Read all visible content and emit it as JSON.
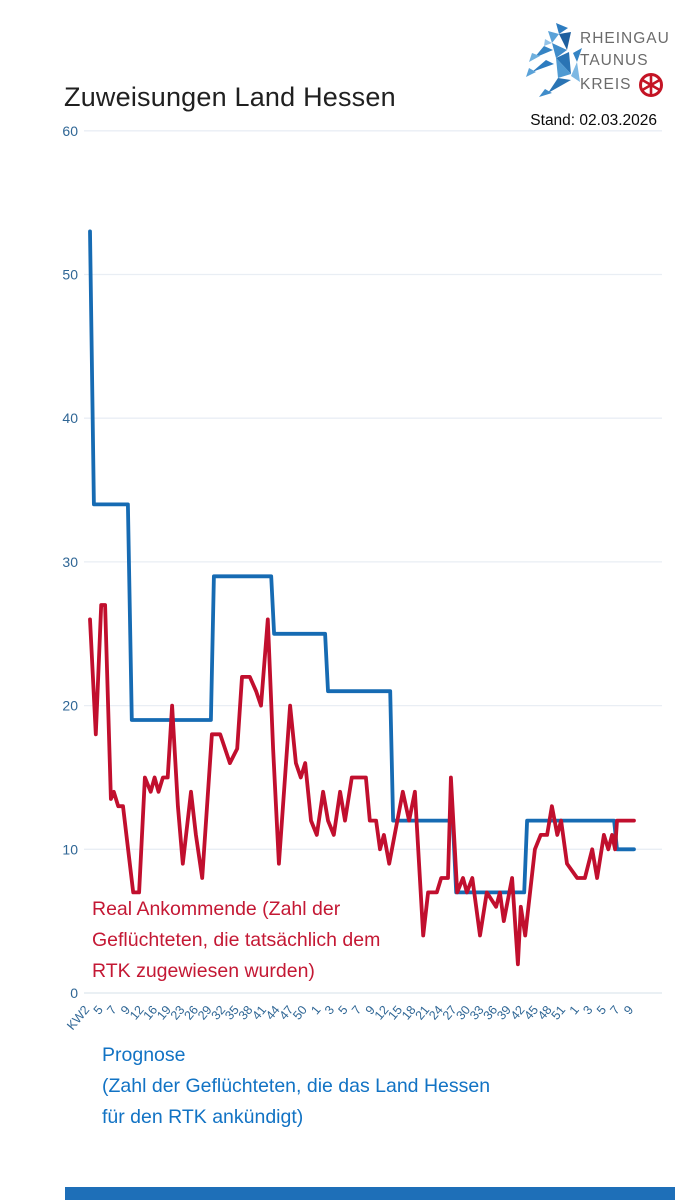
{
  "header": {
    "title": "Zuweisungen Land Hessen",
    "stand": "Stand: 02.03.2026",
    "logo": {
      "line1": "RHEINGAU",
      "line2": "TAUNUS",
      "line3": "KREIS"
    }
  },
  "colors": {
    "prognose_line": "#166bb3",
    "real_line": "#c10f2e",
    "tick_label": "#2f6695",
    "gridline": "#e9eef4",
    "baseline": "#dde6ee",
    "legend_real_text": "#c41834",
    "legend_prog_text": "#1273c4",
    "footer_bar": "#1e6fb8",
    "logo_wheel": "#c41425",
    "logo_text": "#6b6b6b"
  },
  "legend": {
    "real": {
      "text": "Real Ankommende (Zahl der Geflüchteten, die tatsächlich dem RTK zugewiesen wurden)"
    },
    "prognose": {
      "title": "Prognose",
      "subtitle": "(Zahl der Geflüchteten, die das Land Hessen für den RTK ankündigt)"
    }
  },
  "chart_data": {
    "type": "line",
    "title": "Zuweisungen Land Hessen",
    "ylabel": "",
    "xlabel": "",
    "ylim": [
      0,
      60
    ],
    "y_ticks": [
      0,
      10,
      20,
      30,
      40,
      50,
      60
    ],
    "grid": "horizontal",
    "legend_position": "below-as-colored-text",
    "x_labels": [
      "KW2",
      "5",
      "7",
      "9",
      "12",
      "16",
      "19",
      "23",
      "26",
      "29",
      "32",
      "35",
      "38",
      "41",
      "44",
      "47",
      "50",
      "1",
      "3",
      "5",
      "7",
      "9",
      "12",
      "15",
      "18",
      "21",
      "24",
      "27",
      "30",
      "33",
      "36",
      "39",
      "42",
      "45",
      "48",
      "51",
      "1",
      "3",
      "5",
      "7",
      "9"
    ],
    "x_span_weeks": 112,
    "series": [
      {
        "name": "Prognose (Zahl der Geflüchteten, die das Land Hessen für den RTK ankündigt)",
        "style": "stepped",
        "points": [
          [
            0,
            53
          ],
          [
            0.8,
            34
          ],
          [
            7.8,
            34
          ],
          [
            8.6,
            19
          ],
          [
            24.9,
            19
          ],
          [
            25.5,
            29
          ],
          [
            37.3,
            29
          ],
          [
            37.9,
            25
          ],
          [
            48.4,
            25
          ],
          [
            49,
            21
          ],
          [
            61.8,
            21
          ],
          [
            62.4,
            12
          ],
          [
            74.7,
            12
          ],
          [
            75.4,
            7
          ],
          [
            89.4,
            7
          ],
          [
            90,
            12
          ],
          [
            107.9,
            12
          ],
          [
            108.5,
            10
          ],
          [
            112,
            10
          ]
        ]
      },
      {
        "name": "Real Ankommende (Zahl der Geflüchteten, die tatsächlich dem RTK zugewiesen wurden)",
        "style": "jagged",
        "points": [
          [
            0,
            26
          ],
          [
            1.2,
            18
          ],
          [
            2.3,
            27
          ],
          [
            3.1,
            27
          ],
          [
            4.3,
            13.5
          ],
          [
            4.9,
            14
          ],
          [
            5.8,
            13
          ],
          [
            6.8,
            13
          ],
          [
            8.9,
            7
          ],
          [
            10.1,
            7
          ],
          [
            11.3,
            15
          ],
          [
            12.5,
            14
          ],
          [
            13.3,
            15
          ],
          [
            14.1,
            14
          ],
          [
            15,
            15
          ],
          [
            16,
            15
          ],
          [
            16.9,
            20
          ],
          [
            18.1,
            13
          ],
          [
            19.1,
            9
          ],
          [
            20.8,
            14
          ],
          [
            21.8,
            11
          ],
          [
            23.1,
            8
          ],
          [
            25.1,
            18
          ],
          [
            26.8,
            18
          ],
          [
            28.8,
            16
          ],
          [
            30.3,
            17
          ],
          [
            31.3,
            22
          ],
          [
            32.9,
            22
          ],
          [
            34.2,
            21
          ],
          [
            35.2,
            20
          ],
          [
            36.6,
            26
          ],
          [
            37.7,
            17
          ],
          [
            38.9,
            9
          ],
          [
            41.2,
            20
          ],
          [
            42.4,
            16
          ],
          [
            43.4,
            15
          ],
          [
            44.3,
            16
          ],
          [
            45.5,
            12
          ],
          [
            46.7,
            11
          ],
          [
            48,
            14
          ],
          [
            49,
            12
          ],
          [
            50.2,
            11
          ],
          [
            51.5,
            14
          ],
          [
            52.5,
            12
          ],
          [
            53.9,
            15
          ],
          [
            56.8,
            15
          ],
          [
            57.6,
            12
          ],
          [
            58.9,
            12
          ],
          [
            59.7,
            10
          ],
          [
            60.5,
            11
          ],
          [
            61.6,
            9
          ],
          [
            64.4,
            14
          ],
          [
            65.7,
            12
          ],
          [
            66.9,
            14
          ],
          [
            68.6,
            4
          ],
          [
            69.6,
            7
          ],
          [
            71.4,
            7
          ],
          [
            72.3,
            8
          ],
          [
            73.7,
            8
          ],
          [
            74.3,
            15
          ],
          [
            75.6,
            7
          ],
          [
            76.8,
            8
          ],
          [
            77.6,
            7
          ],
          [
            78.7,
            8
          ],
          [
            80.3,
            4
          ],
          [
            81.7,
            7
          ],
          [
            83.6,
            6
          ],
          [
            84.4,
            7
          ],
          [
            85.2,
            5
          ],
          [
            86.9,
            8
          ],
          [
            88.1,
            2
          ],
          [
            88.7,
            6
          ],
          [
            89.6,
            4
          ],
          [
            91.6,
            10
          ],
          [
            92.8,
            11
          ],
          [
            94.1,
            11
          ],
          [
            95.1,
            13
          ],
          [
            96.2,
            11
          ],
          [
            97,
            12
          ],
          [
            98.2,
            9
          ],
          [
            100.3,
            8
          ],
          [
            101.9,
            8
          ],
          [
            103.4,
            10
          ],
          [
            104.4,
            8
          ],
          [
            105.8,
            11
          ],
          [
            106.7,
            10
          ],
          [
            107.5,
            11
          ],
          [
            108.1,
            10
          ],
          [
            108.5,
            12
          ],
          [
            112,
            12
          ]
        ]
      }
    ]
  }
}
